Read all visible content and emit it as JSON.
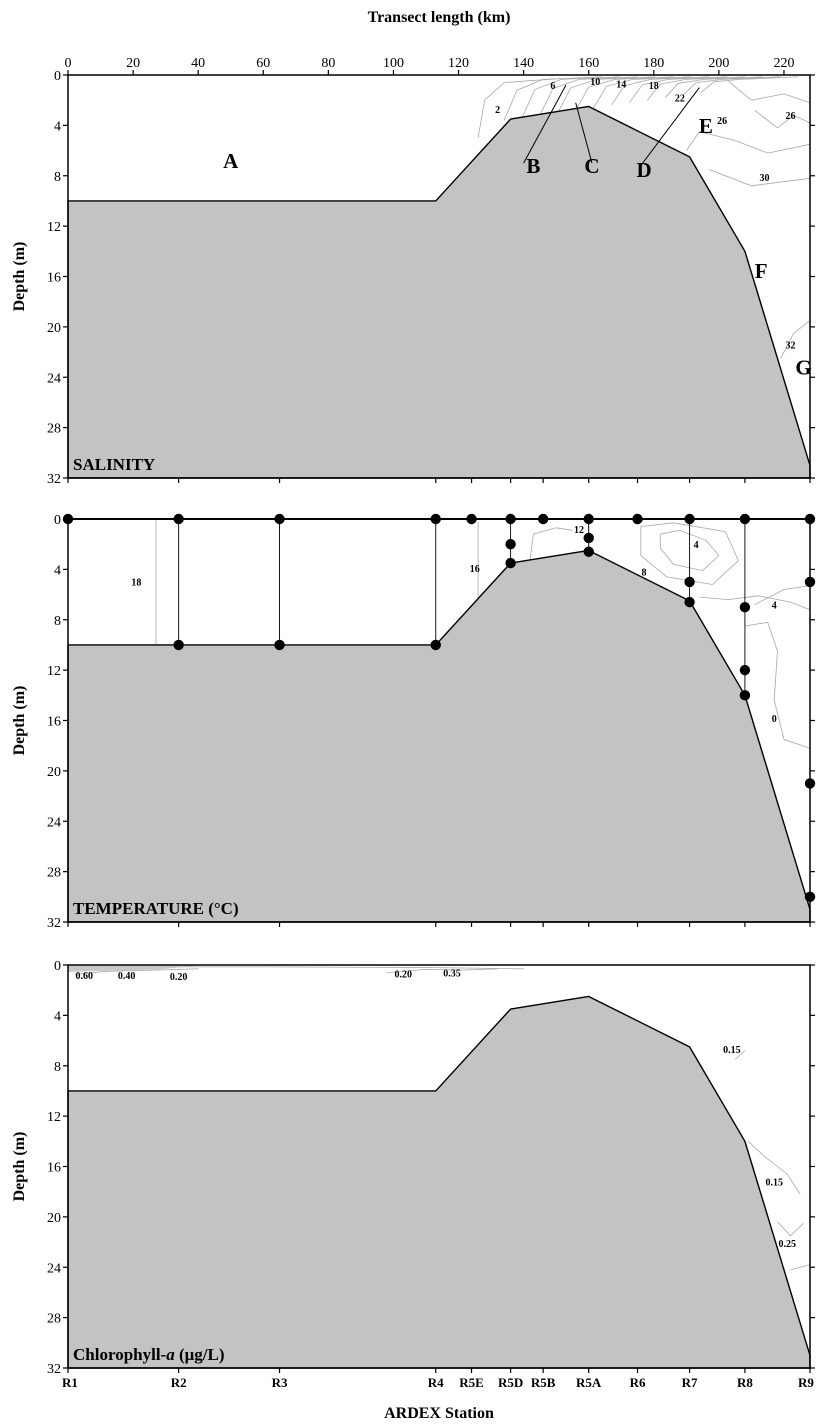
{
  "figure": {
    "top_axis_title": "Transect length (km)",
    "bottom_axis_title": "ARDEX Station",
    "y_axis_title": "Depth (m)"
  },
  "chart_data": {
    "type": "contour",
    "x_axis": {
      "label": "Transect length (km)",
      "range": [
        0,
        228
      ],
      "ticks": [
        0,
        20,
        40,
        60,
        80,
        100,
        120,
        140,
        160,
        180,
        200,
        220
      ],
      "tick_labels": [
        "0",
        "20",
        "40",
        "60",
        "80",
        "100",
        "120",
        "140",
        "160",
        "180",
        "200",
        "220"
      ]
    },
    "y_axis": {
      "label": "Depth (m)",
      "range": [
        0,
        32
      ],
      "inverted": true,
      "ticks": [
        0,
        4,
        8,
        12,
        16,
        20,
        24,
        28,
        32
      ],
      "tick_labels": [
        "0",
        "4",
        "8",
        "12",
        "16",
        "20",
        "24",
        "28",
        "32"
      ]
    },
    "stations": [
      {
        "name": "R1",
        "km": 0
      },
      {
        "name": "R2",
        "km": 34
      },
      {
        "name": "R3",
        "km": 65
      },
      {
        "name": "R4",
        "km": 113
      },
      {
        "name": "R5E",
        "km": 124
      },
      {
        "name": "R5D",
        "km": 136
      },
      {
        "name": "R5B",
        "km": 146
      },
      {
        "name": "R5A",
        "km": 160
      },
      {
        "name": "R6",
        "km": 175
      },
      {
        "name": "R7",
        "km": 191
      },
      {
        "name": "R8",
        "km": 208
      },
      {
        "name": "R9",
        "km": 228
      }
    ],
    "bottom_profile": [
      {
        "km": 0,
        "depth": 10
      },
      {
        "km": 113,
        "depth": 10
      },
      {
        "km": 136,
        "depth": 3.5
      },
      {
        "km": 160,
        "depth": 2.5
      },
      {
        "km": 191,
        "depth": 6.5
      },
      {
        "km": 208,
        "depth": 14
      },
      {
        "km": 228,
        "depth": 31
      }
    ],
    "panels": [
      {
        "id": "salinity",
        "label": "SALINITY",
        "contour_labels": [
          {
            "text": "2",
            "km": 132,
            "depth": 3.0
          },
          {
            "text": "6",
            "km": 149,
            "depth": 1.1
          },
          {
            "text": "10",
            "km": 162,
            "depth": 0.8
          },
          {
            "text": "14",
            "km": 170,
            "depth": 1.0
          },
          {
            "text": "18",
            "km": 180,
            "depth": 1.1
          },
          {
            "text": "22",
            "km": 188,
            "depth": 2.1
          },
          {
            "text": "26",
            "km": 201,
            "depth": 3.9
          },
          {
            "text": "26",
            "km": 222,
            "depth": 3.5
          },
          {
            "text": "30",
            "km": 214,
            "depth": 8.4
          },
          {
            "text": "32",
            "km": 222,
            "depth": 21.7
          }
        ],
        "water_masses": [
          {
            "letter": "A",
            "km": 50,
            "depth": 7.4
          },
          {
            "letter": "B",
            "km": 143,
            "depth": 7.8
          },
          {
            "letter": "C",
            "km": 161,
            "depth": 7.8
          },
          {
            "letter": "D",
            "km": 177,
            "depth": 8.1
          },
          {
            "letter": "E",
            "km": 196,
            "depth": 4.6
          },
          {
            "letter": "F",
            "km": 213,
            "depth": 16.1
          },
          {
            "letter": "G",
            "km": 226,
            "depth": 23.8
          }
        ]
      },
      {
        "id": "temperature",
        "label": "TEMPERATURE (°C)",
        "contour_labels": [
          {
            "text": "18",
            "km": 21,
            "depth": 5.3
          },
          {
            "text": "16",
            "km": 125,
            "depth": 4.2
          },
          {
            "text": "12",
            "km": 157,
            "depth": 1.1
          },
          {
            "text": "8",
            "km": 177,
            "depth": 4.5
          },
          {
            "text": "4",
            "km": 193,
            "depth": 2.3
          },
          {
            "text": "4",
            "km": 217,
            "depth": 7.1
          },
          {
            "text": "0",
            "km": 217,
            "depth": 16.1
          }
        ],
        "sample_points": [
          {
            "km": 0,
            "depth": 0
          },
          {
            "km": 34,
            "depth": 0
          },
          {
            "km": 34,
            "depth": 10
          },
          {
            "km": 65,
            "depth": 0
          },
          {
            "km": 65,
            "depth": 10
          },
          {
            "km": 113,
            "depth": 0
          },
          {
            "km": 113,
            "depth": 10
          },
          {
            "km": 124,
            "depth": 0
          },
          {
            "km": 136,
            "depth": 0
          },
          {
            "km": 136,
            "depth": 2.0
          },
          {
            "km": 136,
            "depth": 3.5
          },
          {
            "km": 146,
            "depth": 0
          },
          {
            "km": 160,
            "depth": 0
          },
          {
            "km": 160,
            "depth": 1.5
          },
          {
            "km": 160,
            "depth": 2.6
          },
          {
            "km": 175,
            "depth": 0
          },
          {
            "km": 191,
            "depth": 0
          },
          {
            "km": 191,
            "depth": 5.0
          },
          {
            "km": 191,
            "depth": 6.6
          },
          {
            "km": 208,
            "depth": 0
          },
          {
            "km": 208,
            "depth": 7.0
          },
          {
            "km": 208,
            "depth": 12.0
          },
          {
            "km": 208,
            "depth": 14.0
          },
          {
            "km": 228,
            "depth": 0
          },
          {
            "km": 228,
            "depth": 5.0
          },
          {
            "km": 228,
            "depth": 21.0
          },
          {
            "km": 228,
            "depth": 30.0
          }
        ]
      },
      {
        "id": "chlorophyll",
        "label": "Chlorophyll-a (μg/L)",
        "label_prefix": "Chlorophyll-",
        "label_italic": "a",
        "label_suffix": " (μg/L)",
        "contour_labels": [
          {
            "text": "0.60",
            "km": 5,
            "depth": 1.1
          },
          {
            "text": "0.40",
            "km": 18,
            "depth": 1.1
          },
          {
            "text": "0.20",
            "km": 34,
            "depth": 1.2
          },
          {
            "text": "0.20",
            "km": 103,
            "depth": 1.0
          },
          {
            "text": "0.35",
            "km": 118,
            "depth": 0.9
          },
          {
            "text": "0.15",
            "km": 204,
            "depth": 7.0
          },
          {
            "text": "0.15",
            "km": 217,
            "depth": 17.5
          },
          {
            "text": "0.25",
            "km": 221,
            "depth": 22.4
          }
        ]
      }
    ]
  }
}
